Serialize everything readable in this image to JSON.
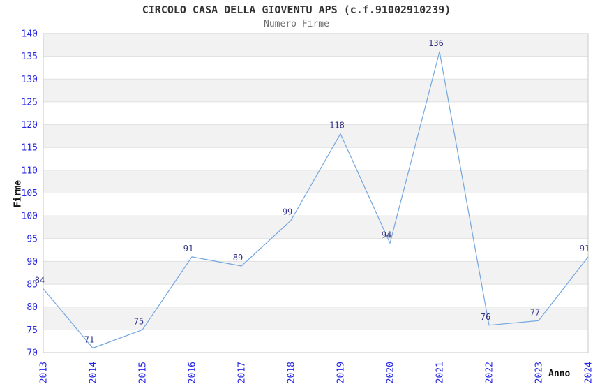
{
  "header": {
    "title": "CIRCOLO CASA DELLA GIOVENTU APS (c.f.91002910239)",
    "subtitle": "Numero Firme"
  },
  "chart_data": {
    "type": "line",
    "x": [
      2013,
      2014,
      2015,
      2016,
      2017,
      2018,
      2019,
      2020,
      2021,
      2022,
      2023,
      2024
    ],
    "values": [
      84,
      71,
      75,
      91,
      89,
      99,
      118,
      94,
      136,
      76,
      77,
      91
    ],
    "title": "CIRCOLO CASA DELLA GIOVENTU APS (c.f.91002910239)",
    "subtitle": "Numero Firme",
    "xlabel": "Anno",
    "ylabel": "Firme",
    "ylim": [
      70,
      140
    ],
    "ytick_step": 5,
    "grid": "horizontal-bands-alternating",
    "legend": "none",
    "point_labels_shown": true,
    "colors": {
      "line": "#74a7e0",
      "tick_label": "#2626e6",
      "point_label": "#333388",
      "band_fill": "#f2f2f2",
      "grid_line": "#e0e0e0",
      "frame": "#c9c9c9",
      "title": "#333333",
      "subtitle": "#6e6e6e",
      "axis_label": "#111111",
      "background": "#ffffff"
    }
  }
}
